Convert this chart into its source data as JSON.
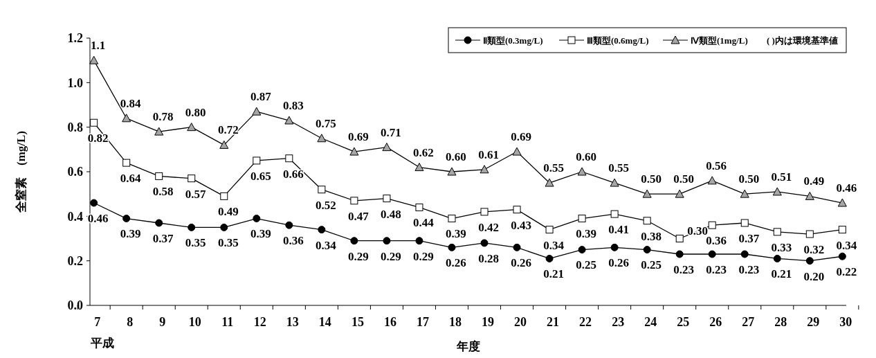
{
  "chart_data": {
    "type": "line",
    "xlabel": "年度",
    "ylabel": "全窒素　(mg/L)",
    "categories": [
      "7",
      "8",
      "9",
      "10",
      "11",
      "12",
      "13",
      "14",
      "15",
      "16",
      "17",
      "18",
      "19",
      "20",
      "21",
      "22",
      "23",
      "24",
      "25",
      "26",
      "27",
      "28",
      "29",
      "30"
    ],
    "ylim": [
      0,
      1.2
    ],
    "yticks": [
      {
        "value": 0,
        "label": "0.0"
      },
      {
        "value": 0.2,
        "label": "0.2"
      },
      {
        "value": 0.4,
        "label": "0.4"
      },
      {
        "value": 0.6,
        "label": "0.6"
      },
      {
        "value": 0.8,
        "label": "0.8"
      },
      {
        "value": 1,
        "label": "1.0"
      },
      {
        "value": 1.2,
        "label": "1.2"
      }
    ],
    "grid": false,
    "legend": "top right",
    "line_style": "solid",
    "annotations": [
      "平成",
      "( )内は環境基準値"
    ],
    "series": [
      {
        "name": "Ⅱ類型(0.3mg/L)",
        "color": "#000000",
        "marker": "circle",
        "values": [
          0.46,
          0.39,
          0.37,
          0.35,
          0.35,
          0.39,
          0.36,
          0.34,
          0.29,
          0.29,
          0.29,
          0.26,
          0.28,
          0.26,
          0.21,
          0.25,
          0.26,
          0.25,
          0.23,
          0.23,
          0.23,
          0.21,
          0.2,
          0.22
        ],
        "value_labels": [
          "0.46",
          "0.39",
          "0.37",
          "0.35",
          "0.35",
          "0.39",
          "0.36",
          "0.34",
          "0.29",
          "0.29",
          "0.29",
          "0.26",
          "0.28",
          "0.26",
          "0.21",
          "0.25",
          "0.26",
          "0.25",
          "0.23",
          "0.23",
          "0.23",
          "0.21",
          "0.20",
          "0.22"
        ]
      },
      {
        "name": "Ⅲ類型(0.6mg/L)",
        "color": "#ffffff",
        "marker": "square",
        "values": [
          0.82,
          0.64,
          0.58,
          0.57,
          0.49,
          0.65,
          0.66,
          0.52,
          0.47,
          0.48,
          0.44,
          0.39,
          0.42,
          0.43,
          0.34,
          0.39,
          0.41,
          0.38,
          0.3,
          0.36,
          0.37,
          0.33,
          0.32,
          0.34
        ],
        "value_labels": [
          "0.82",
          "0.64",
          "0.58",
          "0.57",
          "0.49",
          "0.65",
          "0.66",
          "0.52",
          "0.47",
          "0.48",
          "0.44",
          "0.39",
          "0.42",
          "0.43",
          "0.34",
          "0.39",
          "0.41",
          "0.38",
          "0.30",
          "0.36",
          "0.37",
          "0.33",
          "0.32",
          "0.34"
        ]
      },
      {
        "name": "Ⅳ類型(1mg/L)",
        "color": "#a6a6a6",
        "marker": "triangle",
        "values": [
          1.1,
          0.84,
          0.78,
          0.8,
          0.72,
          0.87,
          0.83,
          0.75,
          0.69,
          0.71,
          0.62,
          0.6,
          0.61,
          0.69,
          0.55,
          0.6,
          0.55,
          0.5,
          0.5,
          0.56,
          0.5,
          0.51,
          0.49,
          0.46
        ],
        "value_labels": [
          "1.1",
          "0.84",
          "0.78",
          "0.80",
          "0.72",
          "0.87",
          "0.83",
          "0.75",
          "0.69",
          "0.71",
          "0.62",
          "0.60",
          "0.61",
          "0.69",
          "0.55",
          "0.60",
          "0.55",
          "0.50",
          "0.50",
          "0.56",
          "0.50",
          "0.51",
          "0.49",
          "0.46"
        ]
      }
    ]
  }
}
